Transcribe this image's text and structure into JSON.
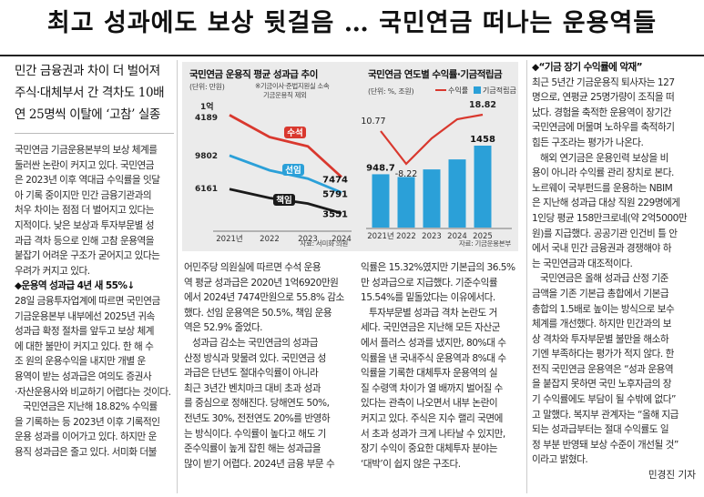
{
  "headline": "최고 성과에도 보상 뒷걸음 … 국민연금 떠나는 운용역들",
  "deck": [
    "민간 금융권과 차이 더 벌어져",
    "주식·대체부서 간 격차도 10배",
    "연 25명씩 이탈에 ‘고참’ 실종"
  ],
  "left_paragraphs": [
    {
      "type": "body",
      "lines": [
        "국민연금 기금운용본부의 보상 체계를",
        "둘러싼 논란이 커지고 있다. 국민연금",
        "은 2023년 이후 역대급 수익률을 잇달",
        "아 기록 중이지만 민간 금융기관과의",
        "처우 차이는 점점 더 벌어지고 있다는",
        "지적이다. 낮은 보상과 투자부문별 성",
        "과급 격차 등으로 인해 고참 운용역을",
        "붙잡기 어려운 구조가 굳어지고 있다는",
        "우려가 커지고 있다."
      ]
    },
    {
      "type": "sub",
      "lines": [
        "◆운용역 성과급 4년 새 55%↓"
      ]
    },
    {
      "type": "body",
      "lines": [
        "28일 금융투자업계에 따르면 국민연금",
        "기금운용본부 내부에선 2025년 귀속",
        "성과급 확정 절차를 앞두고 보상 체계",
        "에 대한 불만이 커지고 있다. 한 해 수",
        "조 원의 운용수익을 내지만 개별 운",
        "용역이 받는 성과급은 여의도 증권사",
        "·자산운용사와 비교하기 어렵다는 것이다."
      ]
    },
    {
      "type": "indent",
      "lines": [
        "국민연금은 지난해 18.82% 수익률",
        "을 기록하는 등 2023년 이후 기록적인",
        "운용 성과를 이어가고 있다. 하지만 운",
        "용직 성과급은 줄고 있다. 서미화 더불"
      ]
    }
  ],
  "mid_col1": [
    {
      "type": "body",
      "lines": [
        "어민주당 의원실에 따르면 수석 운용",
        "역 평균 성과급은 2020년 1억6920만원",
        "에서 2024년 7474만원으로 55.8% 감소",
        "했다. 선임 운용역은 50.5%, 책임 운용",
        "역은 52.9% 줄었다."
      ]
    },
    {
      "type": "indent",
      "lines": [
        "성과급 감소는 국민연금의 성과급",
        "산정 방식과 맞물려 있다. 국민연금 성",
        "과급은 단년도 절대수익률이 아니라",
        "최근 3년간 벤치마크 대비 초과 성과",
        "를 중심으로 정해진다. 당해연도 50%,",
        "전년도 30%, 전전연도 20%를 반영하",
        "는 방식이다. 수익률이 높다고 해도 기",
        "준수익률이 높게 잡힌 해는 성과급을",
        "많이 받기 어렵다. 2024년 금융 부문 수"
      ]
    }
  ],
  "mid_col2": [
    {
      "type": "body",
      "lines": [
        "익률은 15.32%였지만 기본급의 36.5%",
        "만 성과급으로 지급했다. 기준수익률",
        "15.54%를 밑돌았다는 이유에서다."
      ]
    },
    {
      "type": "indent",
      "lines": [
        "투자부문별 성과급 격차 논란도 거",
        "세다. 국민연금은 지난해 모든 자산군",
        "에서 플러스 성과를 냈지만, 80%대 수",
        "익률을 낸 국내주식 운용역과 8%대 수",
        "익률을 기록한 대체투자 운용역의 실",
        "질 수령액 차이가 열 배까지 벌어질 수",
        "있다는 관측이 나오면서 내부 논란이",
        "커지고 있다. 주식은 지수 랠리 국면에",
        "서 초과 성과가 크게 나타날 수 있지만,",
        "장기 수익이 중요한 대체투자 분야는",
        "‘대박’이 쉽지 않은 구조다."
      ]
    }
  ],
  "right_paragraphs": [
    {
      "type": "sub",
      "lines": [
        "◆“기금 장기 수익률에 악재”"
      ]
    },
    {
      "type": "body",
      "lines": [
        "최근 5년간 기금운용직 퇴사자는 127",
        "명으로, 연평균 25명가량이 조직을 떠",
        "났다. 경험을 축적한 운용역이 장기간",
        "국민연금에 머물며 노하우를 축적하기",
        "힘든 구조라는 평가가 나온다."
      ]
    },
    {
      "type": "indent",
      "lines": [
        "해외 연기금은 운용인력 보상을 비",
        "용이 아니라 수익률 관리 장치로 본다.",
        "노르웨이 국부펀드를 운용하는 NBIM",
        "은 지난해 성과급 대상 직원 229명에게",
        "1인당 평균 158만크로네(약 2억5000만",
        "원)를 지급했다. 공공기관 인건비 틀 안",
        "에서 국내 민간 금융권과 경쟁해야 하",
        "는 국민연금과 대조적이다."
      ]
    },
    {
      "type": "indent",
      "lines": [
        "국민연금은 올해 성과급 산정 기준",
        "금액을 기존 기본급 총합에서 기본급",
        "총합의 1.5배로 높이는 방식으로 보수",
        "체계를 개선했다. 하지만 민간과의 보",
        "상 격차와 투자부문별 불만을 해소하",
        "기엔 부족하다는 평가가 적지 않다. 한",
        "전직 국민연금 운용역은 “성과 운용역",
        "을 붙잡지 못하면 국민 노후자금의 장",
        "기 수익률에도 부담이 될 수밖에 없다”",
        "고 말했다. 복지부 관계자는 “올해 지급",
        "되는 성과급부터는 절대 수익률도 일",
        "정 부분 반영돼 보상 수준이 개선될 것”",
        "이라고 밝혔다."
      ]
    }
  ],
  "byline": "민경진 기자",
  "chart1": {
    "title": "국민연금 운용직 평균 성과급 추이",
    "unit": "(단위: 만원)",
    "note": [
      "※기금이사·준법지원실 소속",
      "기금운용직 제외"
    ],
    "source": "자료: 서미화 의원",
    "chart_data": {
      "type": "line",
      "x": [
        "2021년",
        "2022",
        "2023",
        "2024"
      ],
      "series": [
        {
          "name": "수석",
          "values": [
            14189,
            null,
            null,
            7474
          ],
          "color": "#d9382e"
        },
        {
          "name": "선임",
          "values": [
            9802,
            null,
            null,
            5791
          ],
          "color": "#2ba0d8"
        },
        {
          "name": "책임",
          "values": [
            6161,
            null,
            null,
            3551
          ],
          "color": "#1a1a1a"
        }
      ],
      "start_labels": [
        [
          "1억",
          "4189"
        ],
        [
          "9802"
        ],
        [
          "6161"
        ]
      ],
      "end_labels": [
        "7474",
        "5791",
        "3551"
      ]
    }
  },
  "chart2": {
    "title": "국민연금 연도별 수익률·기금적립금",
    "unit": "(단위: %, 조원)",
    "legend": [
      "수익률",
      "기금적립금"
    ],
    "source": "자료: 기금운용본부",
    "chart_data": {
      "type": "bar",
      "categories": [
        "2021년",
        "2022",
        "2023",
        "2024",
        "2025"
      ],
      "values": [
        948.7,
        null,
        null,
        null,
        1458
      ],
      "line_values": [
        10.77,
        -8.22,
        null,
        null,
        18.82
      ],
      "bar_color": "#2ba0d8",
      "line_color": "#d9382e",
      "bar_labels": [
        "948.7",
        "",
        "",
        "",
        "1458"
      ],
      "line_labels": [
        "10.77",
        "-8.22",
        "",
        "",
        "18.82"
      ]
    }
  }
}
